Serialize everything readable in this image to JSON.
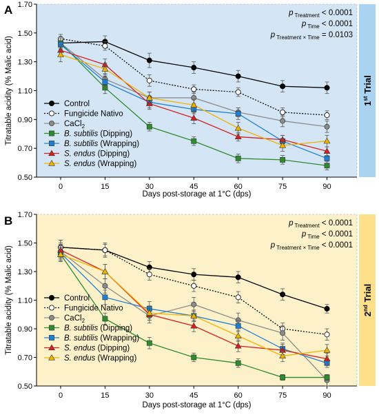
{
  "colors": {
    "panel_a_bg": "#d4e6f5",
    "panel_a_strip": "#a9d3f0",
    "panel_b_bg": "#fdf1c9",
    "panel_b_strip": "#ffe08a"
  },
  "chart_data": [
    {
      "type": "line",
      "panel_label": "A",
      "trial_label": {
        "prefix": "1",
        "sup": "st",
        "suffix": " Trial"
      },
      "xlabel": "Days post-storage at 1°C (dps)",
      "ylabel": "Titratable acidity (% Malic acid)",
      "x": [
        0,
        15,
        30,
        45,
        60,
        75,
        90
      ],
      "ylim": [
        0.5,
        1.7
      ],
      "yticks": [
        "0.50",
        "0.70",
        "0.90",
        "1.10",
        "1.30",
        "1.50",
        "1.70"
      ],
      "xticks": [
        "0",
        "15",
        "30",
        "45",
        "60",
        "75",
        "90"
      ],
      "legend_position": "bottom-left",
      "stats": [
        {
          "p": "p",
          "sub": "Treatment",
          "value": " < 0.0001"
        },
        {
          "p": "p",
          "sub": "Time",
          "value": " < 0.0001"
        },
        {
          "p": "p",
          "sub": "Treatment × Time",
          "value": " = 0.0103"
        }
      ],
      "series": [
        {
          "name": "Control",
          "color": "#000000",
          "marker": "circle",
          "fill": "#000000",
          "dash": "",
          "values": [
            1.43,
            1.44,
            1.31,
            1.26,
            1.2,
            1.13,
            1.12
          ],
          "errors": [
            0.04,
            0.04,
            0.05,
            0.04,
            0.04,
            0.04,
            0.04
          ]
        },
        {
          "name": "Fungicide Nativo",
          "color": "#000000",
          "marker": "circle",
          "fill": "#ffffff",
          "dash": "2,2",
          "values": [
            1.46,
            1.41,
            1.17,
            1.11,
            1.09,
            0.95,
            0.93
          ],
          "errors": [
            0.03,
            0.03,
            0.04,
            0.03,
            0.03,
            0.03,
            0.03
          ]
        },
        {
          "name": "CaCl",
          "name_sub": "2",
          "color": "#8c8c8c",
          "marker": "circle",
          "fill": "#8c8c8c",
          "dash": "",
          "values": [
            1.43,
            1.18,
            1.05,
            1.05,
            0.95,
            0.89,
            0.85
          ],
          "errors": [
            0.04,
            0.04,
            0.04,
            0.04,
            0.03,
            0.04,
            0.04
          ]
        },
        {
          "name": "B. subtilis",
          "name_italic": true,
          "name_suffix": " (Dipping)",
          "color": "#2e8b2e",
          "marker": "square",
          "fill": "#2e8b2e",
          "dash": "",
          "values": [
            1.43,
            1.12,
            0.85,
            0.75,
            0.63,
            0.62,
            0.58
          ],
          "errors": [
            0.04,
            0.04,
            0.03,
            0.03,
            0.03,
            0.03,
            0.03
          ]
        },
        {
          "name": "B. subtilis",
          "name_italic": true,
          "name_suffix": " (Wrapping)",
          "color": "#1f7fd1",
          "marker": "square",
          "fill": "#1f7fd1",
          "dash": "",
          "values": [
            1.42,
            1.16,
            1.02,
            0.97,
            0.94,
            0.75,
            0.63
          ],
          "errors": [
            0.04,
            0.04,
            0.04,
            0.03,
            0.04,
            0.04,
            0.04
          ]
        },
        {
          "name": "S. endus",
          "name_italic": true,
          "name_suffix": " (Dipping)",
          "color": "#d62020",
          "marker": "triangle",
          "fill": "#d62020",
          "dash": "",
          "values": [
            1.38,
            1.28,
            1.01,
            0.91,
            0.78,
            0.76,
            0.68
          ],
          "errors": [
            0.04,
            0.04,
            0.04,
            0.04,
            0.03,
            0.03,
            0.03
          ]
        },
        {
          "name": "S. endus",
          "name_italic": true,
          "name_suffix": " (Wrapping)",
          "color": "#f0b400",
          "marker": "triangle",
          "fill": "#f0b400",
          "dash": "",
          "values": [
            1.35,
            1.25,
            1.05,
            1.0,
            0.84,
            0.72,
            0.75
          ],
          "errors": [
            0.05,
            0.04,
            0.04,
            0.04,
            0.04,
            0.04,
            0.04
          ]
        }
      ]
    },
    {
      "type": "line",
      "panel_label": "B",
      "trial_label": {
        "prefix": "2",
        "sup": "nd",
        "suffix": " Trial"
      },
      "xlabel": "Days post-storage at 1°C (dps)",
      "ylabel": "Titratable acidity (% Malic acid)",
      "x": [
        0,
        15,
        30,
        45,
        60,
        75,
        90
      ],
      "ylim": [
        0.5,
        1.7
      ],
      "yticks": [
        "0.50",
        "0.70",
        "0.90",
        "1.10",
        "1.30",
        "1.50",
        "1.70"
      ],
      "xticks": [
        "0",
        "15",
        "30",
        "45",
        "60",
        "75",
        "90"
      ],
      "legend_position": "bottom-left",
      "stats": [
        {
          "p": "p",
          "sub": "Treatment",
          "value": " < 0.0001"
        },
        {
          "p": "p",
          "sub": "Time",
          "value": " < 0.0001"
        },
        {
          "p": "p",
          "sub": "Treatment × Time",
          "value": " < 0.0001"
        }
      ],
      "series": [
        {
          "name": "Control",
          "color": "#000000",
          "marker": "circle",
          "fill": "#000000",
          "dash": "",
          "values": [
            1.47,
            1.45,
            1.33,
            1.28,
            1.26,
            1.14,
            1.04
          ],
          "errors": [
            0.05,
            0.04,
            0.04,
            0.04,
            0.04,
            0.04,
            0.03
          ]
        },
        {
          "name": "Fungicide Nativo",
          "color": "#000000",
          "marker": "circle",
          "fill": "#ffffff",
          "dash": "2,2",
          "values": [
            1.47,
            1.45,
            1.28,
            1.2,
            1.12,
            0.9,
            0.86
          ],
          "errors": [
            0.05,
            0.05,
            0.04,
            0.04,
            0.04,
            0.04,
            0.04
          ]
        },
        {
          "name": "CaCl",
          "name_sub": "2",
          "color": "#8c8c8c",
          "marker": "circle",
          "fill": "#8c8c8c",
          "dash": "",
          "values": [
            1.44,
            1.2,
            0.99,
            1.07,
            0.96,
            0.87,
            0.54
          ],
          "errors": [
            0.05,
            0.05,
            0.05,
            0.05,
            0.05,
            0.05,
            0.04
          ]
        },
        {
          "name": "B. subtilis",
          "name_italic": true,
          "name_suffix": " (Dipping)",
          "color": "#2e8b2e",
          "marker": "square",
          "fill": "#2e8b2e",
          "dash": "",
          "values": [
            1.42,
            0.97,
            0.8,
            0.7,
            0.66,
            0.56,
            0.56
          ],
          "errors": [
            0.05,
            0.04,
            0.04,
            0.03,
            0.03,
            0.02,
            0.02
          ]
        },
        {
          "name": "B. subtilis",
          "name_italic": true,
          "name_suffix": " (Wrapping)",
          "color": "#1f7fd1",
          "marker": "square",
          "fill": "#1f7fd1",
          "dash": "",
          "values": [
            1.43,
            1.12,
            1.04,
            0.99,
            0.92,
            0.76,
            0.66
          ],
          "errors": [
            0.05,
            0.05,
            0.05,
            0.04,
            0.04,
            0.04,
            0.03
          ]
        },
        {
          "name": "S. endus",
          "name_italic": true,
          "name_suffix": " (Dipping)",
          "color": "#d62020",
          "marker": "triangle",
          "fill": "#d62020",
          "dash": "",
          "values": [
            1.45,
            1.3,
            1.0,
            0.92,
            0.78,
            0.75,
            0.69
          ],
          "errors": [
            0.05,
            0.05,
            0.04,
            0.04,
            0.04,
            0.04,
            0.04
          ]
        },
        {
          "name": "S. endus",
          "name_italic": true,
          "name_suffix": " (Wrapping)",
          "color": "#f0b400",
          "marker": "triangle",
          "fill": "#f0b400",
          "dash": "",
          "values": [
            1.42,
            1.3,
            1.01,
            0.99,
            0.85,
            0.71,
            0.75
          ],
          "errors": [
            0.05,
            0.05,
            0.05,
            0.04,
            0.04,
            0.04,
            0.04
          ]
        }
      ]
    }
  ]
}
